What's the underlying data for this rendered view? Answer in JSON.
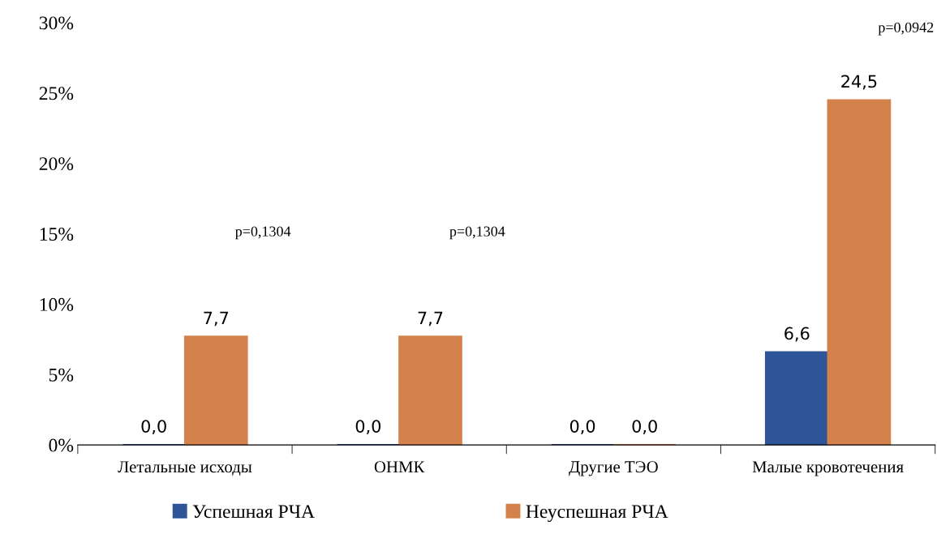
{
  "chart_data": {
    "type": "bar",
    "categories": [
      "Летальные исходы",
      "ОНМК",
      "Другие ТЭО",
      "Малые кровотечения"
    ],
    "series": [
      {
        "name": "Успешная РЧА",
        "color": "#2e5597",
        "values": [
          0.0,
          0.0,
          0.0,
          6.6
        ],
        "value_labels": [
          "0,0",
          "0,0",
          "0,0",
          "6,6"
        ]
      },
      {
        "name": "Неуспешная РЧА",
        "color": "#d4824c",
        "values": [
          7.7,
          7.7,
          0.0,
          24.5
        ],
        "value_labels": [
          "7,7",
          "7,7",
          "0,0",
          "24,5"
        ]
      }
    ],
    "ylim": [
      0,
      30
    ],
    "yticks": [
      {
        "value": 0,
        "label": "0%"
      },
      {
        "value": 5,
        "label": "5%"
      },
      {
        "value": 10,
        "label": "10%"
      },
      {
        "value": 15,
        "label": "15%"
      },
      {
        "value": 20,
        "label": "20%"
      },
      {
        "value": 25,
        "label": "25%"
      },
      {
        "value": 30,
        "label": "30%"
      }
    ],
    "annotations": [
      "p=0,1304",
      "p=0,1304",
      "p=0,0942"
    ],
    "grid": false,
    "legend": "bottom"
  }
}
